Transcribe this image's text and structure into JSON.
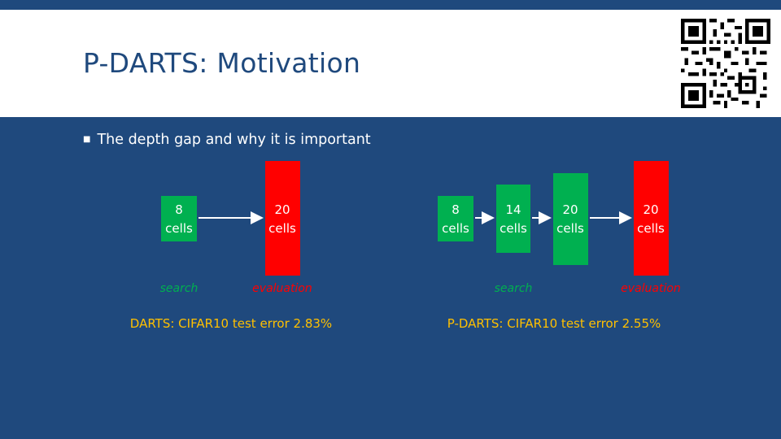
{
  "slide": {
    "title": "P-DARTS: Motivation",
    "bullet": "The depth gap and why it is important"
  },
  "colors": {
    "background": "#1f497d",
    "search_box": "#00b050",
    "eval_box": "#ff0000",
    "result_text": "#ffc000",
    "header_bg": "#ffffff"
  },
  "icons": {
    "qr": "qr-code-icon"
  },
  "left_diagram": {
    "search_cells": [
      "8",
      "cells"
    ],
    "eval_cells": [
      "20",
      "cells"
    ],
    "search_caption": "search",
    "eval_caption": "evaluation",
    "result": "DARTS: CIFAR10 test error 2.83%"
  },
  "right_diagram": {
    "stage1_cells": [
      "8",
      "cells"
    ],
    "stage2_cells": [
      "14",
      "cells"
    ],
    "stage3_cells": [
      "20",
      "cells"
    ],
    "eval_cells": [
      "20",
      "cells"
    ],
    "search_caption": "search",
    "eval_caption": "evaluation",
    "result": "P-DARTS: CIFAR10 test error 2.55%"
  }
}
